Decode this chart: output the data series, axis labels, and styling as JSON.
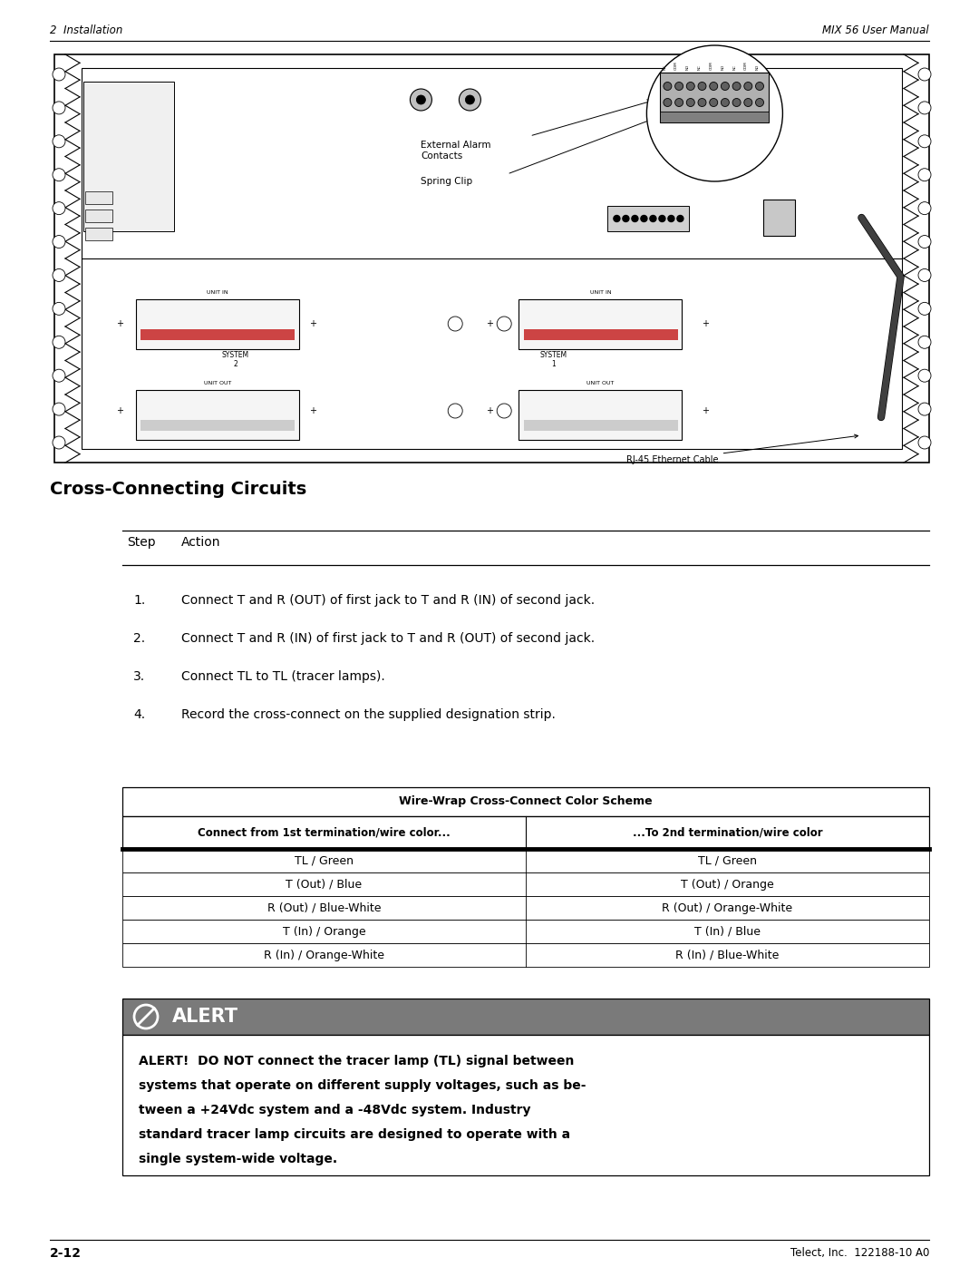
{
  "page_width": 10.8,
  "page_height": 13.97,
  "dpi": 100,
  "bg_color": "#ffffff",
  "header_left": "2  Installation",
  "header_right": "MIX 56 User Manual",
  "footer_left": "2-12",
  "footer_right": "Telect, Inc.  122188-10 A0",
  "section_title": "Cross-Connecting Circuits",
  "table_header_step": "Step",
  "table_header_action": "Action",
  "steps": [
    "Connect T and R (OUT) of first jack to T and R (IN) of second jack.",
    "Connect T and R (IN) of first jack to T and R (OUT) of second jack.",
    "Connect TL to TL (tracer lamps).",
    "Record the cross-connect on the supplied designation strip."
  ],
  "wire_table_title": "Wire-Wrap Cross-Connect Color Scheme",
  "wire_table_col1_header": "Connect from 1st termination/wire color...",
  "wire_table_col2_header": "...To 2nd termination/wire color",
  "wire_table_rows": [
    [
      "TL / Green",
      "TL / Green"
    ],
    [
      "T (Out) / Blue",
      "T (Out) / Orange"
    ],
    [
      "R (Out) / Blue-White",
      "R (Out) / Orange-White"
    ],
    [
      "T (In) / Orange",
      "T (In) / Blue"
    ],
    [
      "R (In) / Orange-White",
      "R (In) / Blue-White"
    ]
  ],
  "alert_title": "ALERT",
  "alert_bg": "#7a7a7a",
  "alert_text_line1": "ALERT!  DO NOT connect the tracer lamp (TL) signal between",
  "alert_text_line2": "systems that operate on different supply voltages, such as be-",
  "alert_text_line3": "tween a +24Vdc system and a -48Vdc system. Industry",
  "alert_text_line4": "standard tracer lamp circuits are designed to operate with a",
  "alert_text_line5": "single system-wide voltage.",
  "diag_label_ext_alarm": "External Alarm\nContacts",
  "diag_label_spring_clip": "Spring Clip",
  "diag_label_rj45": "RJ-45 Ethernet Cable",
  "diag_label_system2": "SYSTEM\n2",
  "diag_label_system1": "SYSTEM\n1"
}
